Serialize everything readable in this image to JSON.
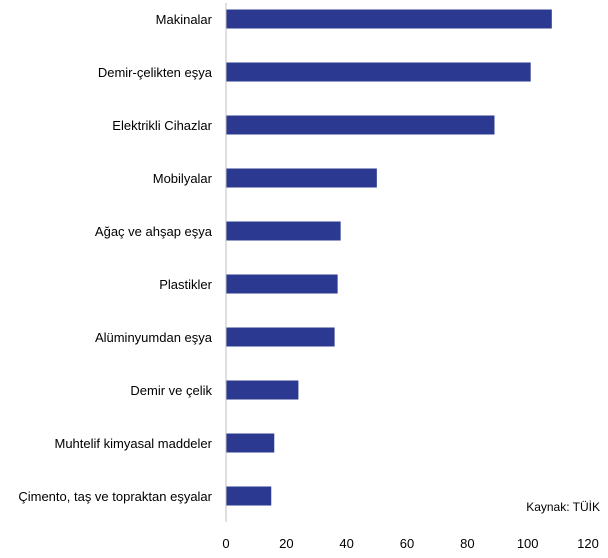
{
  "chart_data": {
    "type": "bar",
    "orientation": "horizontal",
    "categories": [
      "Makinalar",
      "Demir-çelikten eşya",
      "Elektrikli Cihazlar",
      "Mobilyalar",
      "Ağaç ve ahşap eşya",
      "Plastikler",
      "Alüminyumdan eşya",
      "Demir ve çelik",
      "Muhtelif kimyasal maddeler",
      "Çimento, taş ve topraktan eşyalar"
    ],
    "values": [
      108,
      101,
      89,
      50,
      38,
      37,
      36,
      24,
      16,
      15
    ],
    "xlim": [
      0,
      120
    ],
    "xticks": [
      0,
      20,
      40,
      60,
      80,
      100,
      120
    ],
    "ylabel": "",
    "xlabel": "",
    "title": "",
    "grid": false,
    "bar_color": "#2b3990",
    "source_note": "Kaynak: TÜİK"
  }
}
